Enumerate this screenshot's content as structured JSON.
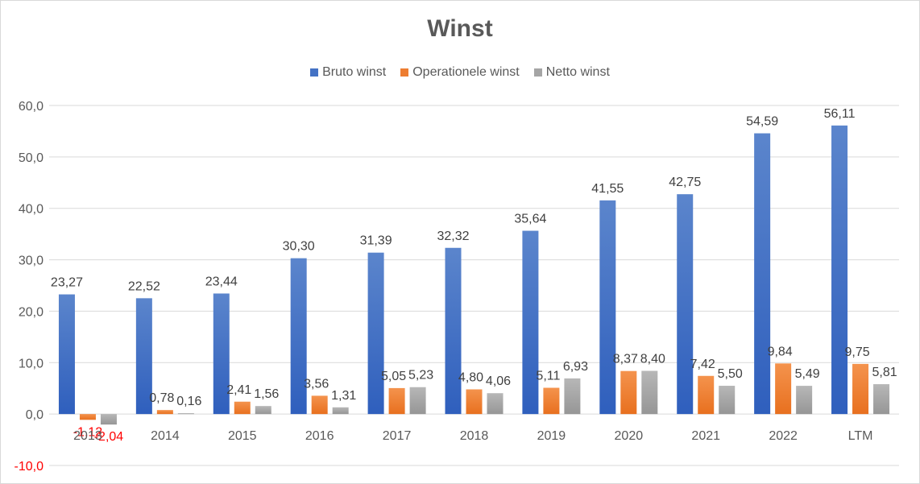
{
  "chart_data": {
    "type": "bar",
    "title": "Winst",
    "categories": [
      "2013",
      "2014",
      "2015",
      "2016",
      "2017",
      "2018",
      "2019",
      "2020",
      "2021",
      "2022",
      "LTM"
    ],
    "series": [
      {
        "name": "Bruto winst",
        "color": "#4472c4",
        "values": [
          23.27,
          22.52,
          23.44,
          30.3,
          31.39,
          32.32,
          35.64,
          41.55,
          42.75,
          54.59,
          56.11
        ],
        "labels": [
          "23,27",
          "22,52",
          "23,44",
          "30,30",
          "31,39",
          "32,32",
          "35,64",
          "41,55",
          "42,75",
          "54,59",
          "56,11"
        ]
      },
      {
        "name": "Operationele winst",
        "color": "#ed7d31",
        "values": [
          -1.12,
          0.78,
          2.41,
          3.56,
          5.05,
          4.8,
          5.11,
          8.37,
          7.42,
          9.84,
          9.75
        ],
        "labels": [
          "-1,12",
          "0,78",
          "2,41",
          "3,56",
          "5,05",
          "4,80",
          "5,11",
          "8,37",
          "7,42",
          "9,84",
          "9,75"
        ]
      },
      {
        "name": "Netto winst",
        "color": "#a5a5a5",
        "values": [
          -2.04,
          0.16,
          1.56,
          1.31,
          5.23,
          4.06,
          6.93,
          8.4,
          5.5,
          5.49,
          5.81
        ],
        "labels": [
          "-2,04",
          "0,16",
          "1,56",
          "1,31",
          "5,23",
          "4,06",
          "6,93",
          "8,40",
          "5,50",
          "5,49",
          "5,81"
        ]
      }
    ],
    "y_ticks": [
      "-10,0",
      "0,0",
      "10,0",
      "20,0",
      "30,0",
      "40,0",
      "50,0",
      "60,0"
    ],
    "ylim": [
      -10,
      60
    ],
    "grid": true,
    "legend_position": "top",
    "negative_label_color": "#ff0000"
  }
}
